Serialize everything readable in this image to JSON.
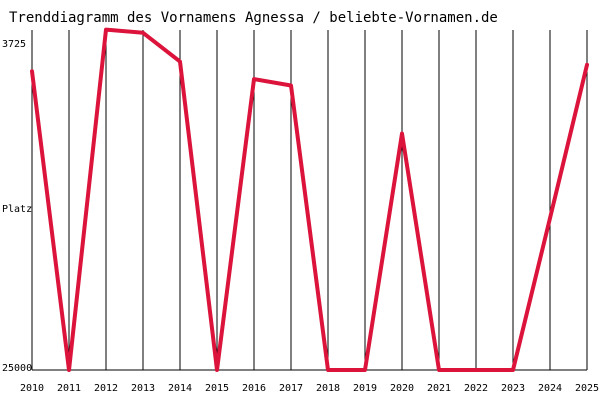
{
  "chart_data": {
    "type": "line",
    "title": "Trenddiagramm des Vornamens Agnessa / beliebte-Vornamen.de",
    "ylabel": "Platz",
    "xlabel": "",
    "y_axis_inverted": true,
    "ylim": [
      25000,
      3725
    ],
    "y_tick_labels": [
      "3725",
      "25000"
    ],
    "grid": "vertical",
    "line_color": "#dc143c",
    "grid_color": "#000000",
    "categories": [
      "2010",
      "2011",
      "2012",
      "2013",
      "2014",
      "2015",
      "2016",
      "2017",
      "2018",
      "2019",
      "2020",
      "2021",
      "2022",
      "2023",
      "2024",
      "2025"
    ],
    "series": [
      {
        "values": [
          6300,
          25000,
          3700,
          3900,
          5700,
          25000,
          6800,
          7200,
          25000,
          25000,
          10200,
          25000,
          25000,
          25000,
          15500,
          5900
        ]
      }
    ]
  }
}
